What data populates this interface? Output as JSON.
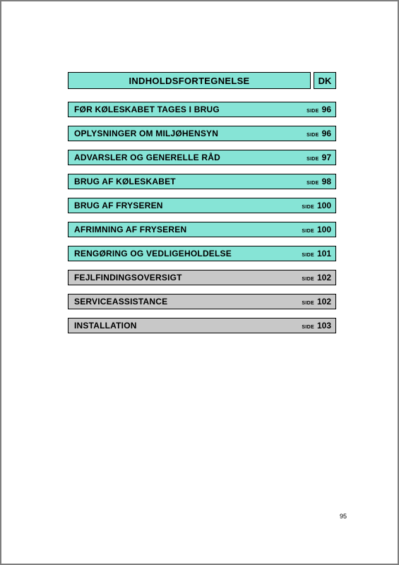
{
  "colors": {
    "teal": "#86e4d6",
    "gray": "#c8c8c8",
    "border": "#000000",
    "text": "#000000"
  },
  "header": {
    "title": "INDHOLDSFORTEGNELSE",
    "lang": "DK"
  },
  "side_label": "SIDE",
  "entries": [
    {
      "title": "FØR KØLESKABET TAGES I BRUG",
      "page": "96",
      "style": "teal"
    },
    {
      "title": "OPLYSNINGER OM MILJØHENSYN",
      "page": "96",
      "style": "teal"
    },
    {
      "title": "ADVARSLER OG GENERELLE RÅD",
      "page": "97",
      "style": "teal"
    },
    {
      "title": "BRUG AF KØLESKABET",
      "page": "98",
      "style": "teal"
    },
    {
      "title": "BRUG AF FRYSEREN",
      "page": "100",
      "style": "teal"
    },
    {
      "title": "AFRIMNING AF FRYSEREN",
      "page": "100",
      "style": "teal"
    },
    {
      "title": "RENGØRING OG VEDLIGEHOLDELSE",
      "page": "101",
      "style": "teal"
    },
    {
      "title": "FEJLFINDINGSOVERSIGT",
      "page": "102",
      "style": "gray"
    },
    {
      "title": "SERVICEASSISTANCE",
      "page": "102",
      "style": "gray"
    },
    {
      "title": "INSTALLATION",
      "page": "103",
      "style": "gray"
    }
  ],
  "footer_page": "95"
}
